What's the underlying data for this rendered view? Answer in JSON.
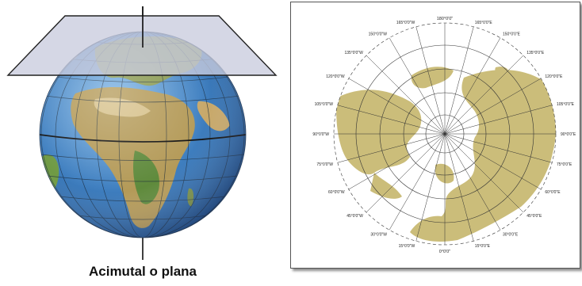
{
  "caption": "Acimutal o plana",
  "colors": {
    "ocean": "#3f7fc0",
    "land": "#c8b46a",
    "plane": "#c9ccde",
    "map_land": "#cbbd7a",
    "grid": "#333333"
  },
  "icons": [
    "globe-icon",
    "projection-plane-icon",
    "azimuthal-map-icon"
  ],
  "map_labels": {
    "top": "180°0'0\"",
    "bottom": "0°0'0\"",
    "left": [
      "165°0'0\"W",
      "150°0'0\"W",
      "135°0'0\"W",
      "120°0'0\"W",
      "105°0'0\"W",
      "90°0'0\"W",
      "75°0'0\"W",
      "60°0'0\"W",
      "45°0'0\"W",
      "30°0'0\"W",
      "15°0'0\"W"
    ],
    "right": [
      "165°0'0\"E",
      "150°0'0\"E",
      "135°0'0\"E",
      "120°0'0\"E",
      "105°0'0\"E",
      "90°0'0\"E",
      "75°0'0\"E",
      "60°0'0\"E",
      "45°0'0\"E",
      "30°0'0\"E",
      "15°0'0\"E"
    ]
  }
}
